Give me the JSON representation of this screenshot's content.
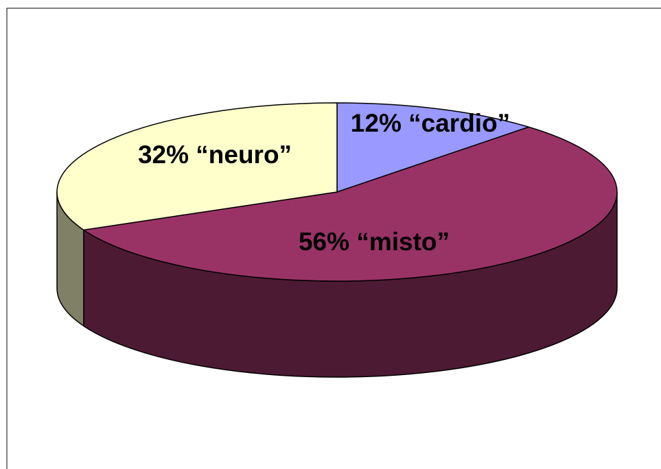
{
  "chart_data": {
    "type": "pie",
    "categories": [
      "“cardio”",
      "“misto”",
      "“neuro”"
    ],
    "values": [
      12,
      56,
      32
    ],
    "value_labels": [
      "12%",
      "56%",
      "32%"
    ],
    "colors": [
      "#9999ff",
      "#993366",
      "#ffffcc"
    ],
    "side_colors": [
      "#4d4d80",
      "#4d1a33",
      "#808066"
    ]
  }
}
